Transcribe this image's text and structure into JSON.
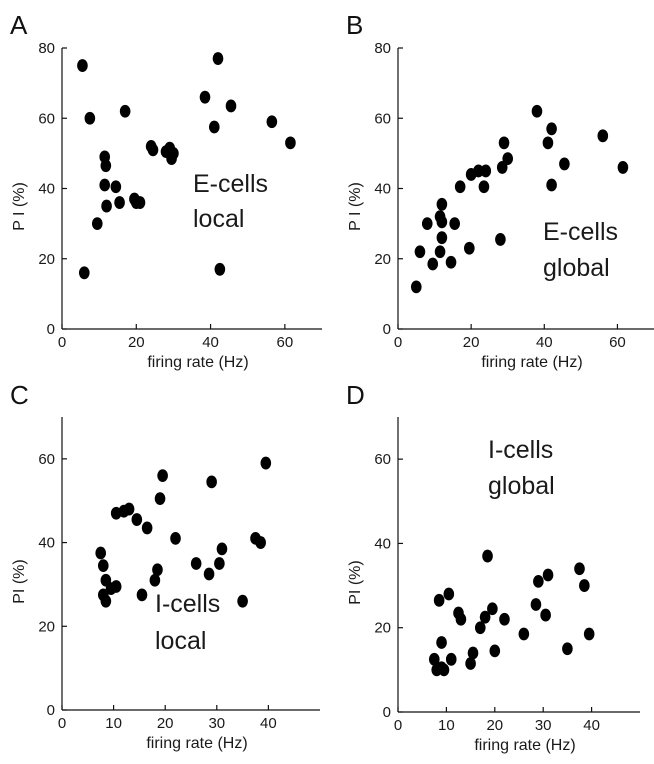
{
  "chart_data": [
    {
      "panel_label": "A",
      "type": "scatter",
      "xlabel": "firing rate (Hz)",
      "ylabel": "P I (%)",
      "annotation": [
        "E-cells",
        "local"
      ],
      "xlim": [
        0,
        70
      ],
      "ylim": [
        0,
        80
      ],
      "xticks": [
        0,
        20,
        40,
        60
      ],
      "yticks": [
        0,
        20,
        40,
        60,
        80
      ],
      "grid": false,
      "points": [
        [
          5.5,
          75
        ],
        [
          6,
          16
        ],
        [
          7.5,
          60
        ],
        [
          9.5,
          30
        ],
        [
          11.5,
          49
        ],
        [
          11.8,
          46.5
        ],
        [
          11.5,
          41
        ],
        [
          12,
          35
        ],
        [
          14.5,
          40.5
        ],
        [
          15.5,
          36
        ],
        [
          17,
          62
        ],
        [
          19.5,
          37
        ],
        [
          20,
          36
        ],
        [
          21,
          36
        ],
        [
          24,
          52
        ],
        [
          24.5,
          51
        ],
        [
          28,
          50.5
        ],
        [
          29,
          51.5
        ],
        [
          29.5,
          48.5
        ],
        [
          30,
          50
        ],
        [
          38.5,
          66
        ],
        [
          41,
          57.5
        ],
        [
          42,
          77
        ],
        [
          42.5,
          17
        ],
        [
          45.5,
          63.5
        ],
        [
          56.5,
          59
        ],
        [
          61.5,
          53
        ]
      ]
    },
    {
      "panel_label": "B",
      "type": "scatter",
      "xlabel": "firing rate (Hz)",
      "ylabel": "P I (%)",
      "annotation": [
        "E-cells",
        "global"
      ],
      "xlim": [
        0,
        70
      ],
      "ylim": [
        0,
        80
      ],
      "xticks": [
        0,
        20,
        40,
        60
      ],
      "yticks": [
        0,
        20,
        40,
        60,
        80
      ],
      "grid": false,
      "points": [
        [
          5,
          12
        ],
        [
          6,
          22
        ],
        [
          8,
          30
        ],
        [
          9.5,
          18.5
        ],
        [
          11.5,
          32
        ],
        [
          12,
          35.5
        ],
        [
          12,
          30.5
        ],
        [
          12,
          26
        ],
        [
          11.5,
          22
        ],
        [
          14.5,
          19
        ],
        [
          15.5,
          30
        ],
        [
          17,
          40.5
        ],
        [
          19.5,
          23
        ],
        [
          20,
          44
        ],
        [
          22,
          45
        ],
        [
          23.5,
          40.5
        ],
        [
          24,
          45
        ],
        [
          28,
          25.5
        ],
        [
          28.5,
          46
        ],
        [
          29,
          53
        ],
        [
          30,
          48.5
        ],
        [
          38,
          62
        ],
        [
          41,
          53
        ],
        [
          42,
          57
        ],
        [
          42,
          41
        ],
        [
          45.5,
          47
        ],
        [
          56,
          55
        ],
        [
          61.5,
          46
        ]
      ]
    },
    {
      "panel_label": "C",
      "type": "scatter",
      "xlabel": "firing rate (Hz)",
      "ylabel": "PI (%)",
      "annotation": [
        "I-cells",
        "local"
      ],
      "xlim": [
        0,
        50
      ],
      "ylim": [
        0,
        70
      ],
      "xticks": [
        0,
        10,
        20,
        30,
        40
      ],
      "yticks": [
        0,
        20,
        40,
        60
      ],
      "grid": false,
      "points": [
        [
          7.5,
          37.5
        ],
        [
          8,
          34.5
        ],
        [
          8,
          27.5
        ],
        [
          8.5,
          26
        ],
        [
          8.5,
          31
        ],
        [
          9.5,
          29
        ],
        [
          10.5,
          29.5
        ],
        [
          10.5,
          47
        ],
        [
          12,
          47.5
        ],
        [
          13,
          48
        ],
        [
          14.5,
          45.5
        ],
        [
          15.5,
          27.5
        ],
        [
          16.5,
          43.5
        ],
        [
          18,
          31
        ],
        [
          18.5,
          33.5
        ],
        [
          19,
          50.5
        ],
        [
          19.5,
          56
        ],
        [
          22,
          41
        ],
        [
          26,
          35
        ],
        [
          28.5,
          32.5
        ],
        [
          29,
          54.5
        ],
        [
          30.5,
          35
        ],
        [
          31,
          38.5
        ],
        [
          35,
          26
        ],
        [
          37.5,
          41
        ],
        [
          38.5,
          40
        ],
        [
          39.5,
          59
        ]
      ]
    },
    {
      "panel_label": "D",
      "type": "scatter",
      "xlabel": "firing rate (Hz)",
      "ylabel": "PI (%)",
      "annotation": [
        "I-cells",
        "global"
      ],
      "xlim": [
        0,
        50
      ],
      "ylim": [
        0,
        70
      ],
      "xticks": [
        0,
        10,
        20,
        30,
        40
      ],
      "yticks": [
        0,
        20,
        40,
        60
      ],
      "grid": false,
      "points": [
        [
          7.5,
          12.5
        ],
        [
          8,
          10
        ],
        [
          8.5,
          26.5
        ],
        [
          9,
          16.5
        ],
        [
          9,
          10.5
        ],
        [
          9.5,
          10
        ],
        [
          10.5,
          28
        ],
        [
          11,
          12.5
        ],
        [
          12.5,
          23.5
        ],
        [
          13,
          22
        ],
        [
          15,
          11.5
        ],
        [
          15.5,
          14
        ],
        [
          17,
          20
        ],
        [
          18,
          22.5
        ],
        [
          18.5,
          37
        ],
        [
          19.5,
          24.5
        ],
        [
          20,
          14.5
        ],
        [
          22,
          22
        ],
        [
          26,
          18.5
        ],
        [
          28.5,
          25.5
        ],
        [
          29,
          31
        ],
        [
          30.5,
          23
        ],
        [
          31,
          32.5
        ],
        [
          35,
          15
        ],
        [
          37.5,
          34
        ],
        [
          38.5,
          30
        ],
        [
          39.5,
          18.5
        ]
      ]
    }
  ]
}
